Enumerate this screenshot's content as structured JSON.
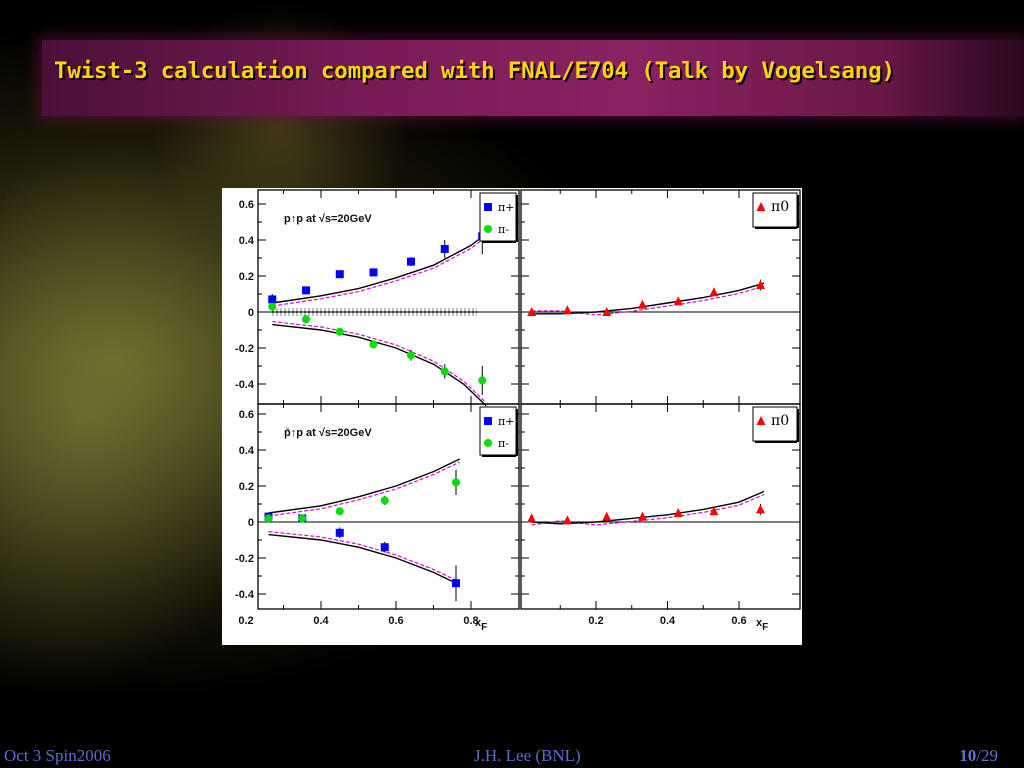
{
  "slide": {
    "title": "Twist-3 calculation compared with FNAL/E704 (Talk by Vogelsang)",
    "footer_left": "Oct 3 Spin2006",
    "footer_center": "J.H. Lee (BNL)",
    "footer_page": "10",
    "footer_total": "/29"
  },
  "chart_data": [
    {
      "type": "scatter",
      "panel": "top-left",
      "annotation": "p↑p at √s=20GeV",
      "legend": [
        "π+",
        "π-"
      ],
      "legend_placement": "top-right",
      "xlim": [
        0.2,
        0.85
      ],
      "ylim": [
        -0.5,
        0.65
      ],
      "yticks": [
        "0.6",
        "0.4",
        "0.2",
        "0",
        "-0.2",
        "-0.4"
      ],
      "series": [
        {
          "name": "π+",
          "color": "#0000ff",
          "marker": "square",
          "x": [
            0.27,
            0.36,
            0.45,
            0.54,
            0.64,
            0.73,
            0.83
          ],
          "y": [
            0.07,
            0.12,
            0.21,
            0.22,
            0.28,
            0.35,
            0.42
          ],
          "err": [
            0.03,
            0.015,
            0.015,
            0.015,
            0.025,
            0.05,
            0.1
          ]
        },
        {
          "name": "π-",
          "color": "#00dd00",
          "marker": "circle",
          "x": [
            0.27,
            0.36,
            0.45,
            0.54,
            0.64,
            0.73,
            0.83
          ],
          "y": [
            0.03,
            -0.04,
            -0.11,
            -0.18,
            -0.24,
            -0.33,
            -0.38
          ],
          "err": [
            0.02,
            0.01,
            0.015,
            0.015,
            0.03,
            0.04,
            0.08
          ]
        }
      ],
      "curves": [
        {
          "x": [
            0.27,
            0.4,
            0.5,
            0.6,
            0.7,
            0.8,
            0.85
          ],
          "y": [
            0.05,
            0.09,
            0.13,
            0.19,
            0.26,
            0.37,
            0.45
          ]
        },
        {
          "x": [
            0.27,
            0.4,
            0.5,
            0.6,
            0.7,
            0.78,
            0.84
          ],
          "y": [
            -0.07,
            -0.1,
            -0.14,
            -0.2,
            -0.29,
            -0.4,
            -0.52
          ]
        }
      ]
    },
    {
      "type": "scatter",
      "panel": "top-right",
      "legend": [
        "π0"
      ],
      "legend_placement": "top-right",
      "xlim": [
        0.0,
        0.7
      ],
      "ylim": [
        -0.5,
        0.65
      ],
      "series": [
        {
          "name": "π0",
          "color": "#ff0000",
          "marker": "triangle",
          "x": [
            0.02,
            0.12,
            0.23,
            0.33,
            0.43,
            0.53,
            0.66
          ],
          "y": [
            0.0,
            0.01,
            0.0,
            0.04,
            0.06,
            0.11,
            0.15
          ],
          "err": [
            0.01,
            0.01,
            0.01,
            0.015,
            0.015,
            0.015,
            0.03
          ]
        }
      ],
      "curves": [
        {
          "x": [
            0.02,
            0.1,
            0.2,
            0.3,
            0.4,
            0.5,
            0.6,
            0.67
          ],
          "y": [
            -0.01,
            -0.01,
            0.0,
            0.02,
            0.05,
            0.08,
            0.12,
            0.16
          ]
        }
      ]
    },
    {
      "type": "scatter",
      "panel": "bottom-left",
      "annotation": "p̄↑p at √s=20GeV",
      "legend": [
        "π+",
        "π-"
      ],
      "legend_placement": "top-right",
      "xlim": [
        0.2,
        0.85
      ],
      "ylim": [
        -0.5,
        0.65
      ],
      "xticks": [
        "0.2",
        "0.4",
        "0.6",
        "0.8"
      ],
      "xlabel": "xF",
      "yticks": [
        "0.6",
        "0.4",
        "0.2",
        "0",
        "-0.2",
        "-0.4"
      ],
      "series": [
        {
          "name": "π+",
          "color": "#0000ff",
          "marker": "square",
          "x": [
            0.26,
            0.35,
            0.45,
            0.57,
            0.76
          ],
          "y": [
            0.03,
            0.02,
            -0.06,
            -0.14,
            -0.34
          ],
          "err": [
            0.015,
            0.015,
            0.03,
            0.03,
            0.1
          ]
        },
        {
          "name": "π-",
          "color": "#00dd00",
          "marker": "circle",
          "x": [
            0.26,
            0.35,
            0.45,
            0.57,
            0.76
          ],
          "y": [
            0.02,
            0.02,
            0.06,
            0.12,
            0.22
          ],
          "err": [
            0.015,
            0.015,
            0.02,
            0.025,
            0.07
          ]
        }
      ],
      "curves": [
        {
          "x": [
            0.26,
            0.4,
            0.5,
            0.6,
            0.7,
            0.77
          ],
          "y": [
            0.05,
            0.09,
            0.14,
            0.2,
            0.28,
            0.35
          ]
        },
        {
          "x": [
            0.26,
            0.4,
            0.5,
            0.6,
            0.7,
            0.77
          ],
          "y": [
            -0.07,
            -0.1,
            -0.14,
            -0.2,
            -0.28,
            -0.35
          ]
        }
      ]
    },
    {
      "type": "scatter",
      "panel": "bottom-right",
      "legend": [
        "π0"
      ],
      "legend_placement": "top-right",
      "xlim": [
        0.0,
        0.7
      ],
      "ylim": [
        -0.5,
        0.65
      ],
      "xticks": [
        "0.2",
        "0.4",
        "0.6"
      ],
      "xlabel": "xF",
      "series": [
        {
          "name": "π0",
          "color": "#ff0000",
          "marker": "triangle",
          "x": [
            0.02,
            0.12,
            0.23,
            0.33,
            0.43,
            0.53,
            0.66
          ],
          "y": [
            0.02,
            0.01,
            0.03,
            0.03,
            0.05,
            0.06,
            0.07
          ],
          "err": [
            0.01,
            0.01,
            0.01,
            0.01,
            0.015,
            0.02,
            0.03
          ]
        }
      ],
      "curves": [
        {
          "x": [
            0.02,
            0.1,
            0.2,
            0.3,
            0.4,
            0.5,
            0.6,
            0.67
          ],
          "y": [
            0.0,
            -0.01,
            0.0,
            0.02,
            0.04,
            0.07,
            0.11,
            0.17
          ]
        }
      ]
    }
  ]
}
